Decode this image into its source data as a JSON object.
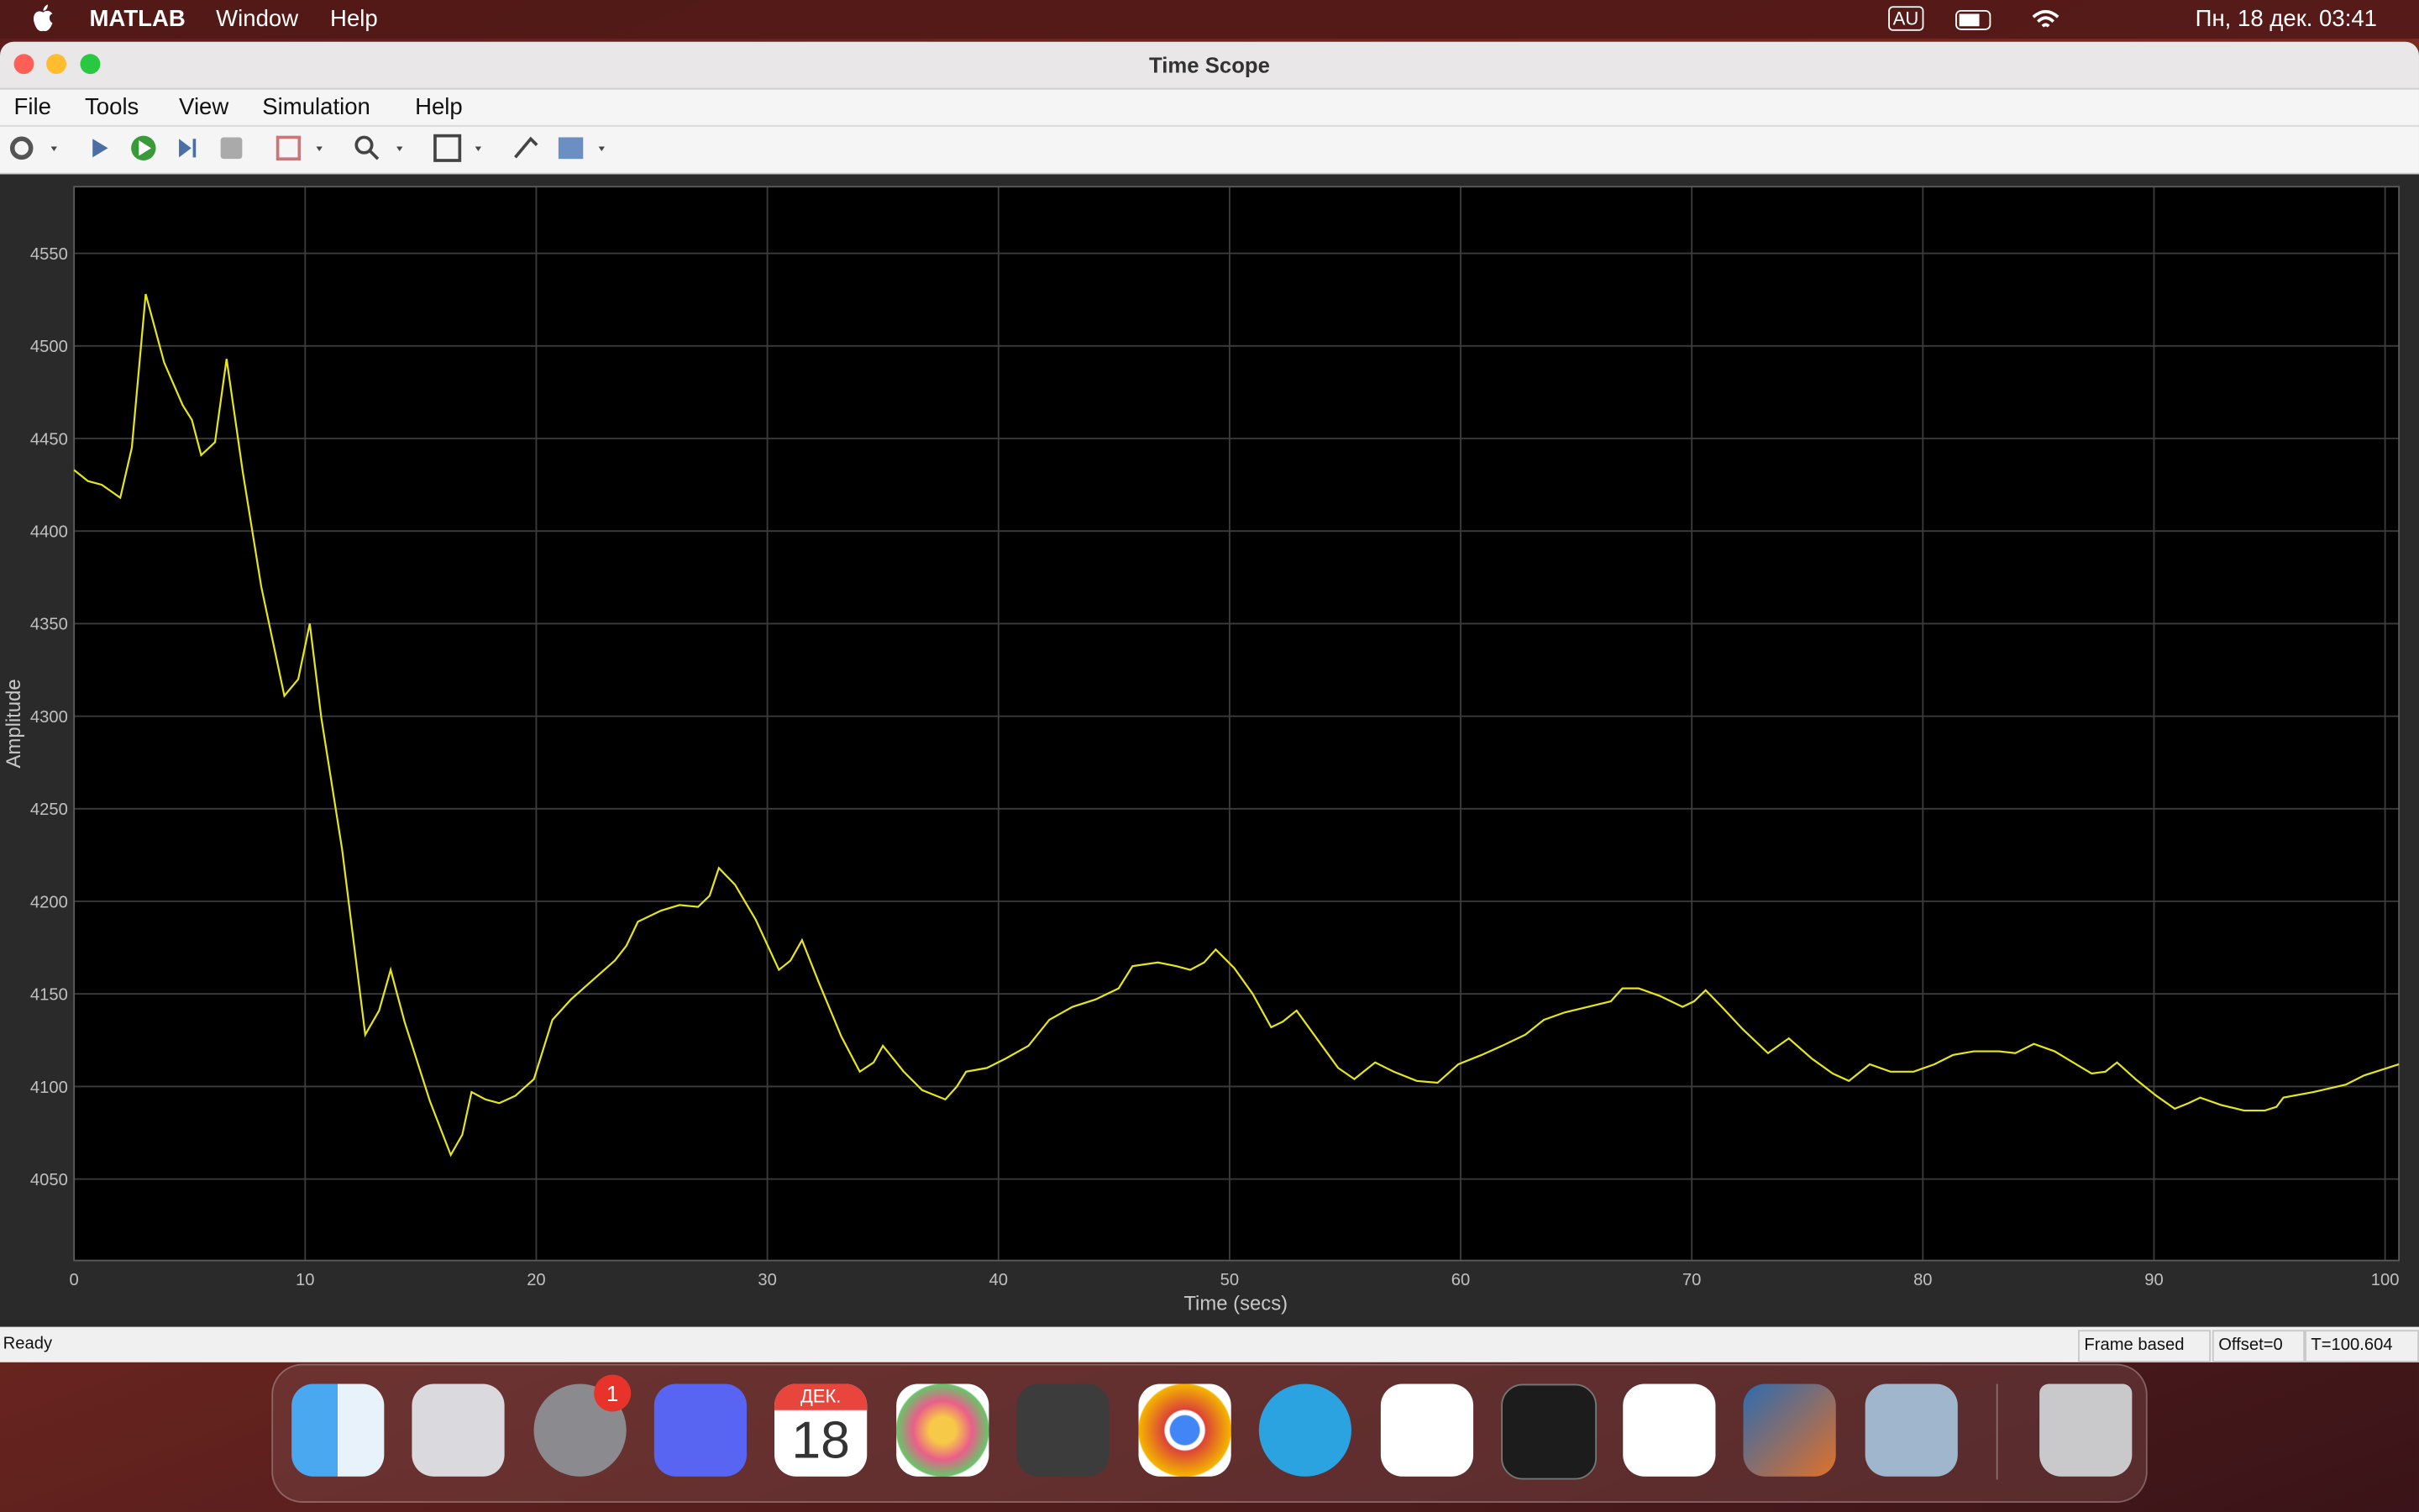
{
  "menubar": {
    "app": "MATLAB",
    "menus": [
      "Window",
      "Help"
    ],
    "input_source": "AU",
    "clock": "Пн, 18 дек. 03:41"
  },
  "window": {
    "title": "Time Scope",
    "menus": [
      "File",
      "Tools",
      "View",
      "Simulation",
      "Help"
    ]
  },
  "chart_data": {
    "type": "line",
    "x": [
      0,
      0.6,
      1.2,
      2.0,
      2.5,
      3.1,
      3.9,
      4.7,
      5.1,
      5.5,
      6.1,
      6.6,
      7.3,
      8.1,
      9.1,
      9.7,
      10.2,
      10.7,
      11.6,
      12.6,
      13.2,
      13.7,
      14.3,
      15.4,
      16.3,
      16.8,
      17.2,
      17.8,
      18.4,
      19.1,
      19.9,
      20.7,
      21.5,
      22.4,
      23.4,
      23.9,
      24.4,
      25.4,
      26.2,
      27.0,
      27.5,
      27.9,
      28.6,
      29.5,
      30.5,
      31.0,
      31.5,
      32.2,
      33.2,
      34.0,
      34.6,
      35.0,
      35.9,
      36.7,
      37.7,
      38.2,
      38.6,
      39.5,
      40.3,
      41.3,
      42.2,
      43.2,
      44.2,
      45.2,
      45.8,
      46.9,
      47.7,
      48.3,
      48.9,
      49.4,
      50.2,
      51.0,
      51.8,
      52.3,
      52.9,
      54.0,
      54.7,
      55.4,
      55.8,
      56.3,
      57.1,
      58.1,
      59.0,
      59.9,
      60.9,
      61.8,
      62.8,
      63.6,
      64.5,
      65.5,
      66.5,
      67.0,
      67.7,
      68.6,
      69.6,
      70.1,
      70.6,
      71.3,
      72.2,
      73.3,
      74.2,
      75.2,
      76.1,
      76.8,
      77.7,
      78.6,
      79.6,
      80.5,
      81.3,
      82.2,
      83.3,
      84.0,
      84.8,
      85.7,
      86.5,
      87.3,
      87.9,
      88.4,
      89.2,
      90.1,
      90.9,
      91.5,
      92.0,
      92.9,
      93.9,
      94.8,
      95.3,
      95.6,
      96.9,
      98.3,
      99.1,
      100.6
    ],
    "values": [
      4433,
      4427,
      4425,
      4418,
      4445,
      4528,
      4491,
      4468,
      4460,
      4441,
      4448,
      4493,
      4432,
      4370,
      4311,
      4320,
      4350,
      4299,
      4228,
      4128,
      4141,
      4163,
      4135,
      4092,
      4063,
      4074,
      4097,
      4093,
      4091,
      4095,
      4104,
      4136,
      4147,
      4157,
      4168,
      4176,
      4189,
      4195,
      4198,
      4197,
      4203,
      4218,
      4209,
      4190,
      4163,
      4168,
      4179,
      4157,
      4127,
      4108,
      4113,
      4122,
      4108,
      4098,
      4093,
      4100,
      4108,
      4110,
      4115,
      4122,
      4136,
      4143,
      4147,
      4153,
      4165,
      4167,
      4165,
      4163,
      4167,
      4174,
      4164,
      4150,
      4132,
      4135,
      4141,
      4122,
      4110,
      4104,
      4108,
      4113,
      4108,
      4103,
      4102,
      4112,
      4117,
      4122,
      4128,
      4136,
      4140,
      4143,
      4146,
      4153,
      4153,
      4149,
      4143,
      4146,
      4152,
      4143,
      4131,
      4118,
      4126,
      4115,
      4107,
      4103,
      4112,
      4108,
      4108,
      4112,
      4117,
      4119,
      4119,
      4118,
      4123,
      4119,
      4113,
      4107,
      4108,
      4113,
      4104,
      4095,
      4088,
      4091,
      4094,
      4090,
      4087,
      4087,
      4089,
      4094,
      4097,
      4101,
      4106,
      4112
    ],
    "color": "#e6e619",
    "xlabel": "Time (secs)",
    "ylabel": "Amplitude",
    "xlim": [
      0,
      100.6
    ],
    "ylim": [
      4006,
      4586
    ],
    "xticks": [
      0,
      10,
      20,
      30,
      40,
      50,
      60,
      70,
      80,
      90,
      100
    ],
    "yticks": [
      4050,
      4100,
      4150,
      4200,
      4250,
      4300,
      4350,
      4400,
      4450,
      4500,
      4550
    ],
    "grid": true
  },
  "status": {
    "left": "Ready",
    "mode": "Frame based",
    "offset": "Offset=0",
    "time": "T=100.604"
  },
  "dock": {
    "calendar_month": "ДЕК.",
    "calendar_day": "18",
    "badge": "1"
  }
}
